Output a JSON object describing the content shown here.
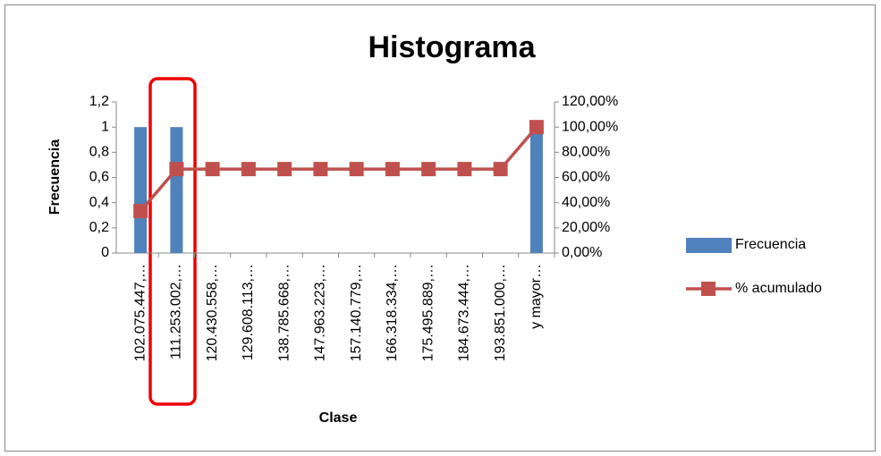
{
  "chart_data": {
    "type": "bar-line",
    "title": "Histograma",
    "x_label": "Clase",
    "y_label": "Frecuencia",
    "categories": [
      "102.075.447,…",
      "111.253.002,…",
      "120.430.558,…",
      "129.608.113,…",
      "138.785.668,…",
      "147.963.223,…",
      "157.140.779,…",
      "166.318.334,…",
      "175.495.889,…",
      "184.673.444,…",
      "193.851.000,…",
      "y mayor…"
    ],
    "series": [
      {
        "name": "Frecuencia",
        "type": "bar",
        "color": "#4f81bd",
        "values": [
          1,
          1,
          0,
          0,
          0,
          0,
          0,
          0,
          0,
          0,
          0,
          1
        ]
      },
      {
        "name": "% acumulado",
        "type": "line",
        "axis": "y2",
        "color": "#c0504d",
        "values": [
          33.33,
          66.67,
          66.67,
          66.67,
          66.67,
          66.67,
          66.67,
          66.67,
          66.67,
          66.67,
          66.67,
          100
        ]
      }
    ],
    "ylim": [
      0,
      1.2
    ],
    "yticks": [
      0,
      {
        "value": 0.2,
        "label": "0,2"
      },
      {
        "value": 0.4,
        "label": "0,4"
      },
      {
        "value": 0.6,
        "label": "0,6"
      },
      {
        "value": 0.8,
        "label": "0,8"
      },
      1,
      {
        "value": 1.2,
        "label": "1,2"
      }
    ],
    "y2lim": [
      0,
      120
    ],
    "y2ticks": [
      {
        "value": 0,
        "label": "0,00%"
      },
      {
        "value": 20,
        "label": "20,00%"
      },
      {
        "value": 40,
        "label": "40,00%"
      },
      {
        "value": 60,
        "label": "60,00%"
      },
      {
        "value": 80,
        "label": "80,00%"
      },
      {
        "value": 100,
        "label": "100,00%"
      },
      {
        "value": 120,
        "label": "120,00%"
      }
    ],
    "legend": "right",
    "grid": false
  }
}
